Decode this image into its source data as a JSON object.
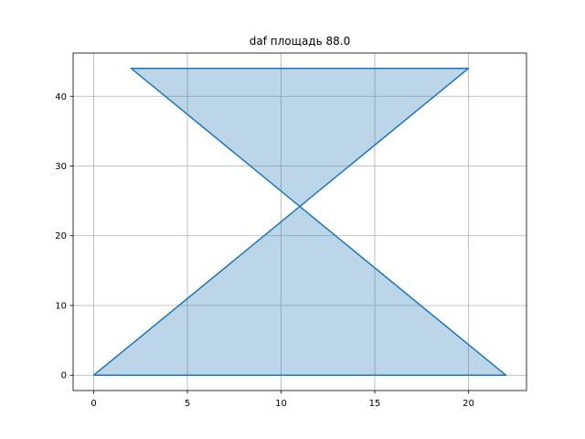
{
  "chart_data": {
    "type": "area",
    "title": "daf площадь 88.0",
    "xlabel": "",
    "ylabel": "",
    "xlim": [
      -1.1,
      23.1
    ],
    "ylim": [
      -2.2,
      46.2
    ],
    "xticks": [
      0,
      5,
      10,
      15,
      20
    ],
    "yticks": [
      0,
      10,
      20,
      30,
      40
    ],
    "grid": true,
    "series": [
      {
        "x": [
          0,
          22,
          2,
          20,
          0
        ],
        "y": [
          0,
          0,
          44,
          44,
          0
        ],
        "line_color": "#1f77b4",
        "fill_color": "#1f77b4",
        "fill_alpha": 0.3
      }
    ]
  }
}
